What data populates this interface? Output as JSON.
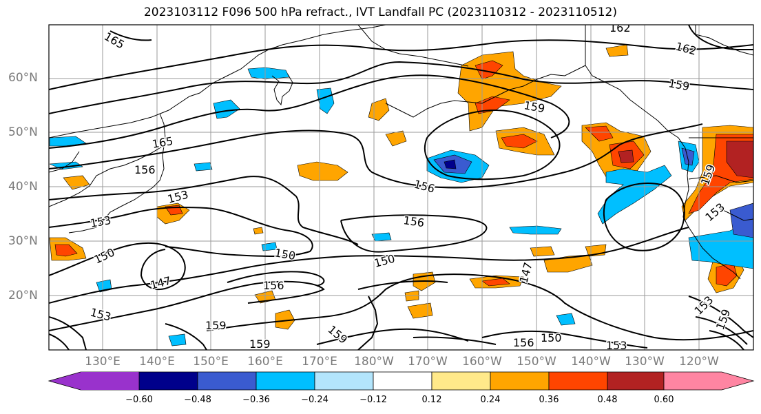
{
  "title": "2023103112 F096 500 hPa refract., IVT Landfall PC (2023110312 - 2023110512)",
  "lat_labels": [
    "60°N",
    "50°N",
    "40°N",
    "30°N",
    "20°N"
  ],
  "lon_labels": [
    "130°E",
    "140°E",
    "150°E",
    "160°E",
    "170°E",
    "180°W",
    "170°W",
    "160°W",
    "150°W",
    "140°W",
    "130°W",
    "120°W"
  ],
  "contour_labels": [
    "165",
    "162",
    "162",
    "159",
    "159",
    "156",
    "156",
    "156",
    "153",
    "153",
    "150",
    "150",
    "150",
    "147",
    "147",
    "156",
    "159",
    "159",
    "156",
    "153",
    "150",
    "159",
    "153",
    "153",
    "159",
    "153",
    "159",
    "165"
  ],
  "colorbar": {
    "ticks": [
      "−0.60",
      "−0.48",
      "−0.36",
      "−0.24",
      "−0.12",
      "0.12",
      "0.24",
      "0.36",
      "0.48",
      "0.60"
    ],
    "colors": [
      "#9932cc",
      "#00008b",
      "#3a5bd0",
      "#00bfff",
      "#b3e5fc",
      "#ffffff",
      "#ffe98a",
      "#ffa500",
      "#ff4500",
      "#b22222",
      "#ff85a2"
    ]
  }
}
